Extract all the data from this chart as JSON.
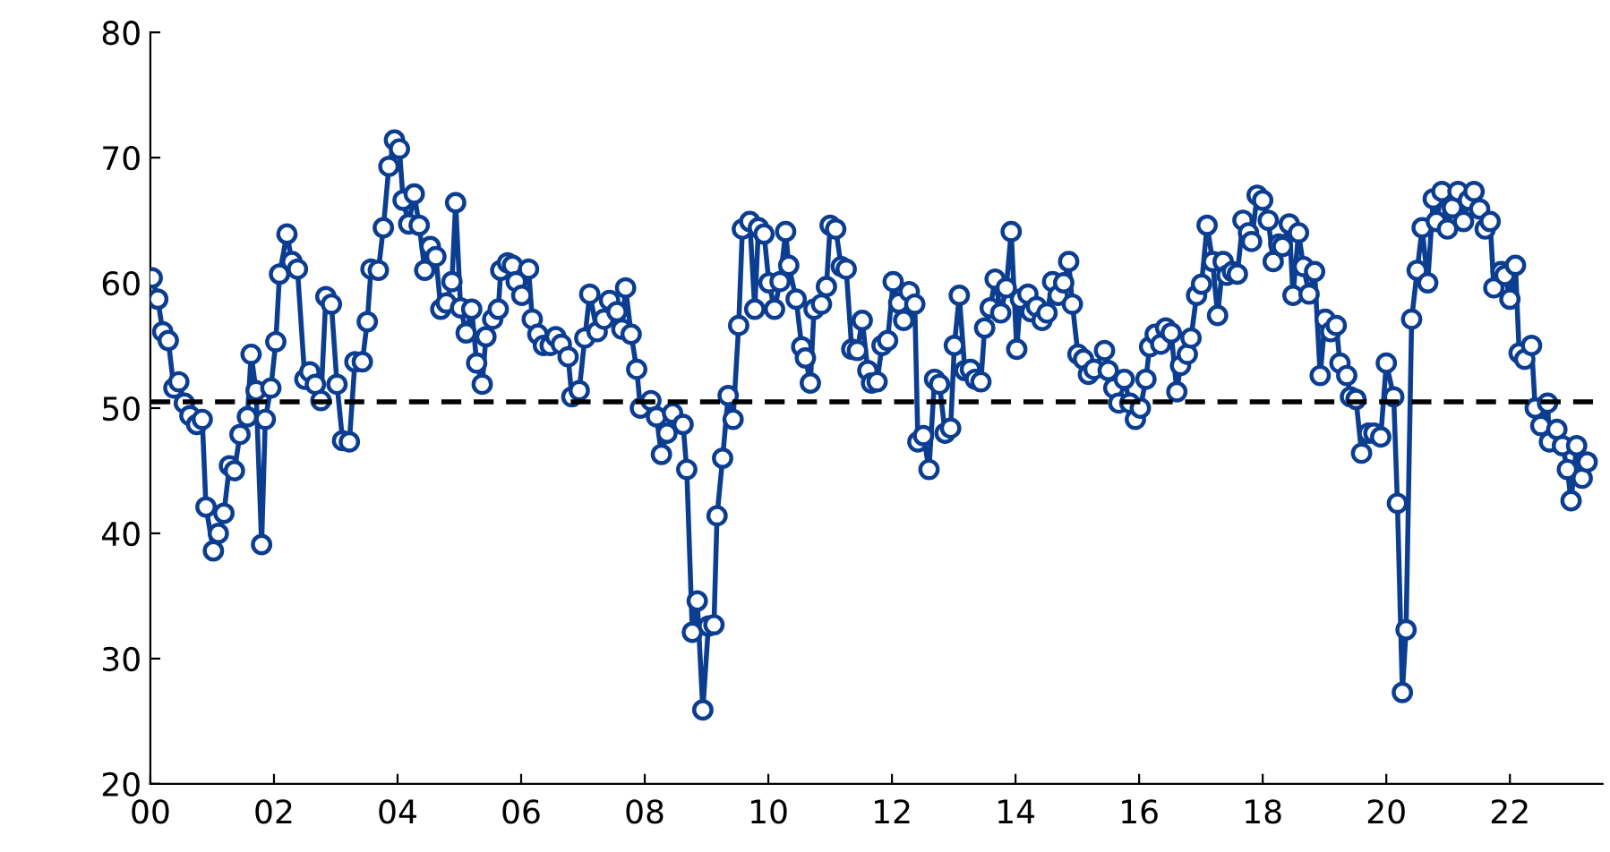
{
  "chart_data": {
    "type": "line",
    "marker": "circle",
    "line_style": "solid",
    "grid": false,
    "xlim": [
      2000,
      2023.5
    ],
    "ylim": [
      20,
      80
    ],
    "xticks": [
      {
        "value": 2000,
        "label": "00"
      },
      {
        "value": 2002,
        "label": "02"
      },
      {
        "value": 2004,
        "label": "04"
      },
      {
        "value": 2006,
        "label": "06"
      },
      {
        "value": 2008,
        "label": "08"
      },
      {
        "value": 2010,
        "label": "10"
      },
      {
        "value": 2012,
        "label": "12"
      },
      {
        "value": 2014,
        "label": "14"
      },
      {
        "value": 2016,
        "label": "16"
      },
      {
        "value": 2018,
        "label": "18"
      },
      {
        "value": 2020,
        "label": "20"
      },
      {
        "value": 2022,
        "label": "22"
      }
    ],
    "yticks": [
      20,
      30,
      40,
      50,
      60,
      70,
      80
    ],
    "ref_lines": [
      {
        "axis": "y",
        "value": 50.5,
        "color": "#000000",
        "line_style": "dashed"
      }
    ],
    "series": [
      {
        "color": "#0b3d91",
        "x": [
          2000.03,
          2000.12,
          2000.2,
          2000.29,
          2000.38,
          2000.46,
          2000.55,
          2000.64,
          2000.75,
          2000.84,
          2000.9,
          2001.02,
          2001.1,
          2001.19,
          2001.28,
          2001.36,
          2001.45,
          2001.57,
          2001.63,
          2001.71,
          2001.8,
          2001.86,
          2001.95,
          2002.03,
          2002.09,
          2002.21,
          2002.29,
          2002.38,
          2002.5,
          2002.58,
          2002.67,
          2002.76,
          2002.84,
          2002.93,
          2003.02,
          2003.11,
          2003.22,
          2003.31,
          2003.43,
          2003.51,
          2003.57,
          2003.69,
          2003.77,
          2003.86,
          2003.95,
          2004.03,
          2004.09,
          2004.18,
          2004.27,
          2004.35,
          2004.44,
          2004.53,
          2004.62,
          2004.7,
          2004.79,
          2004.88,
          2004.94,
          2005.02,
          2005.11,
          2005.2,
          2005.28,
          2005.37,
          2005.43,
          2005.54,
          2005.63,
          2005.67,
          2005.78,
          2005.86,
          2005.92,
          2006.01,
          2006.12,
          2006.18,
          2006.27,
          2006.36,
          2006.47,
          2006.56,
          2006.65,
          2006.76,
          2006.82,
          2006.94,
          2007.03,
          2007.11,
          2007.23,
          2007.34,
          2007.43,
          2007.55,
          2007.63,
          2007.69,
          2007.78,
          2007.87,
          2007.93,
          2008.1,
          2008.19,
          2008.27,
          2008.36,
          2008.45,
          2008.62,
          2008.68,
          2008.77,
          2008.85,
          2008.94,
          2009.03,
          2009.12,
          2009.17,
          2009.26,
          2009.35,
          2009.43,
          2009.52,
          2009.58,
          2009.7,
          2009.78,
          2009.84,
          2009.93,
          2010.01,
          2010.1,
          2010.19,
          2010.28,
          2010.33,
          2010.45,
          2010.54,
          2010.6,
          2010.68,
          2010.74,
          2010.86,
          2010.94,
          2011.0,
          2011.09,
          2011.18,
          2011.26,
          2011.35,
          2011.44,
          2011.52,
          2011.61,
          2011.67,
          2011.76,
          2011.84,
          2011.93,
          2012.02,
          2012.11,
          2012.19,
          2012.28,
          2012.37,
          2012.42,
          2012.51,
          2012.6,
          2012.69,
          2012.77,
          2012.86,
          2012.95,
          2013.01,
          2013.09,
          2013.18,
          2013.27,
          2013.35,
          2013.44,
          2013.5,
          2013.59,
          2013.67,
          2013.76,
          2013.85,
          2013.93,
          2014.02,
          2014.08,
          2014.2,
          2014.25,
          2014.34,
          2014.43,
          2014.51,
          2014.6,
          2014.69,
          2014.78,
          2014.86,
          2014.92,
          2015.01,
          2015.1,
          2015.18,
          2015.27,
          2015.44,
          2015.5,
          2015.59,
          2015.67,
          2015.76,
          2015.85,
          2015.94,
          2016.02,
          2016.11,
          2016.17,
          2016.26,
          2016.35,
          2016.43,
          2016.52,
          2016.61,
          2016.67,
          2016.78,
          2016.84,
          2016.93,
          2017.01,
          2017.1,
          2017.19,
          2017.27,
          2017.36,
          2017.42,
          2017.51,
          2017.59,
          2017.68,
          2017.77,
          2017.82,
          2017.91,
          2018.0,
          2018.09,
          2018.17,
          2018.26,
          2018.32,
          2018.43,
          2018.49,
          2018.58,
          2018.66,
          2018.75,
          2018.84,
          2018.93,
          2019.01,
          2019.1,
          2019.19,
          2019.25,
          2019.36,
          2019.42,
          2019.51,
          2019.6,
          2019.71,
          2019.8,
          2019.91,
          2020.0,
          2020.12,
          2020.18,
          2020.26,
          2020.32,
          2020.41,
          2020.5,
          2020.58,
          2020.67,
          2020.76,
          2020.81,
          2020.9,
          2020.99,
          2021.07,
          2021.16,
          2021.25,
          2021.33,
          2021.42,
          2021.51,
          2021.6,
          2021.68,
          2021.74,
          2021.86,
          2021.92,
          2022.0,
          2022.09,
          2022.15,
          2022.24,
          2022.35,
          2022.41,
          2022.5,
          2022.61,
          2022.64,
          2022.76,
          2022.85,
          2022.93,
          2022.99,
          2023.08,
          2023.17,
          2023.25
        ],
        "values": [
          60.4,
          58.7,
          56.1,
          55.4,
          51.6,
          52.1,
          50.4,
          49.4,
          48.7,
          49.1,
          42.1,
          38.6,
          40.0,
          41.6,
          45.4,
          45.0,
          47.9,
          49.3,
          54.3,
          51.4,
          39.1,
          49.1,
          51.6,
          55.3,
          60.7,
          63.9,
          61.7,
          61.1,
          52.3,
          52.9,
          51.9,
          50.6,
          58.9,
          58.3,
          51.9,
          47.4,
          47.3,
          53.7,
          53.7,
          56.9,
          61.1,
          61.0,
          64.4,
          69.3,
          71.4,
          70.7,
          66.6,
          64.7,
          67.1,
          64.6,
          61.0,
          62.9,
          62.1,
          57.9,
          58.4,
          60.1,
          66.4,
          58.0,
          56.0,
          57.9,
          53.6,
          51.9,
          55.7,
          57.1,
          57.9,
          61.0,
          61.6,
          61.4,
          60.1,
          59.0,
          61.1,
          57.1,
          55.9,
          55.0,
          55.0,
          55.7,
          55.1,
          54.1,
          50.9,
          51.4,
          55.6,
          59.1,
          56.1,
          57.1,
          58.6,
          57.7,
          56.3,
          59.6,
          55.9,
          53.1,
          50.0,
          50.6,
          49.3,
          46.3,
          48.0,
          49.6,
          48.7,
          45.1,
          32.1,
          34.6,
          25.9,
          32.6,
          32.7,
          41.4,
          46.0,
          51.0,
          49.1,
          56.6,
          64.3,
          64.9,
          57.9,
          64.4,
          63.9,
          60.0,
          57.9,
          60.1,
          64.1,
          61.4,
          58.7,
          54.9,
          54.0,
          52.0,
          57.9,
          58.3,
          59.7,
          64.6,
          64.3,
          61.3,
          61.1,
          54.7,
          54.6,
          57.0,
          53.0,
          52.0,
          52.1,
          55.0,
          55.4,
          60.1,
          58.4,
          57.0,
          59.3,
          58.3,
          47.3,
          47.8,
          45.1,
          52.3,
          51.9,
          48.0,
          48.4,
          55.0,
          59.0,
          53.0,
          53.1,
          52.3,
          52.1,
          56.4,
          58.0,
          60.3,
          57.6,
          59.6,
          64.1,
          54.7,
          58.7,
          59.1,
          57.7,
          58.1,
          57.0,
          57.6,
          60.1,
          59.0,
          60.0,
          61.7,
          58.3,
          54.3,
          53.9,
          52.7,
          53.1,
          54.6,
          53.0,
          51.6,
          50.4,
          52.3,
          50.4,
          49.1,
          50.0,
          52.3,
          54.9,
          55.9,
          55.1,
          56.4,
          56.0,
          51.3,
          53.4,
          54.3,
          55.6,
          59.0,
          59.9,
          64.6,
          61.7,
          57.4,
          61.7,
          60.6,
          60.9,
          60.7,
          65.0,
          64.0,
          63.3,
          67.0,
          66.6,
          65.0,
          61.7,
          63.1,
          62.9,
          64.7,
          59.0,
          64.0,
          61.3,
          59.1,
          60.9,
          52.6,
          57.1,
          56.1,
          56.6,
          53.6,
          52.6,
          50.9,
          50.7,
          46.4,
          48.0,
          48.0,
          47.7,
          53.6,
          50.9,
          42.4,
          27.3,
          32.3,
          57.1,
          61.0,
          64.4,
          60.0,
          66.7,
          64.9,
          67.3,
          64.3,
          66.0,
          67.3,
          64.9,
          66.6,
          67.3,
          65.9,
          64.3,
          64.9,
          59.6,
          60.9,
          60.6,
          58.7,
          61.4,
          54.4,
          53.9,
          55.0,
          50.0,
          48.6,
          50.4,
          47.3,
          48.3,
          47.0,
          45.1,
          42.6,
          47.0,
          44.4,
          45.7
        ]
      }
    ]
  }
}
